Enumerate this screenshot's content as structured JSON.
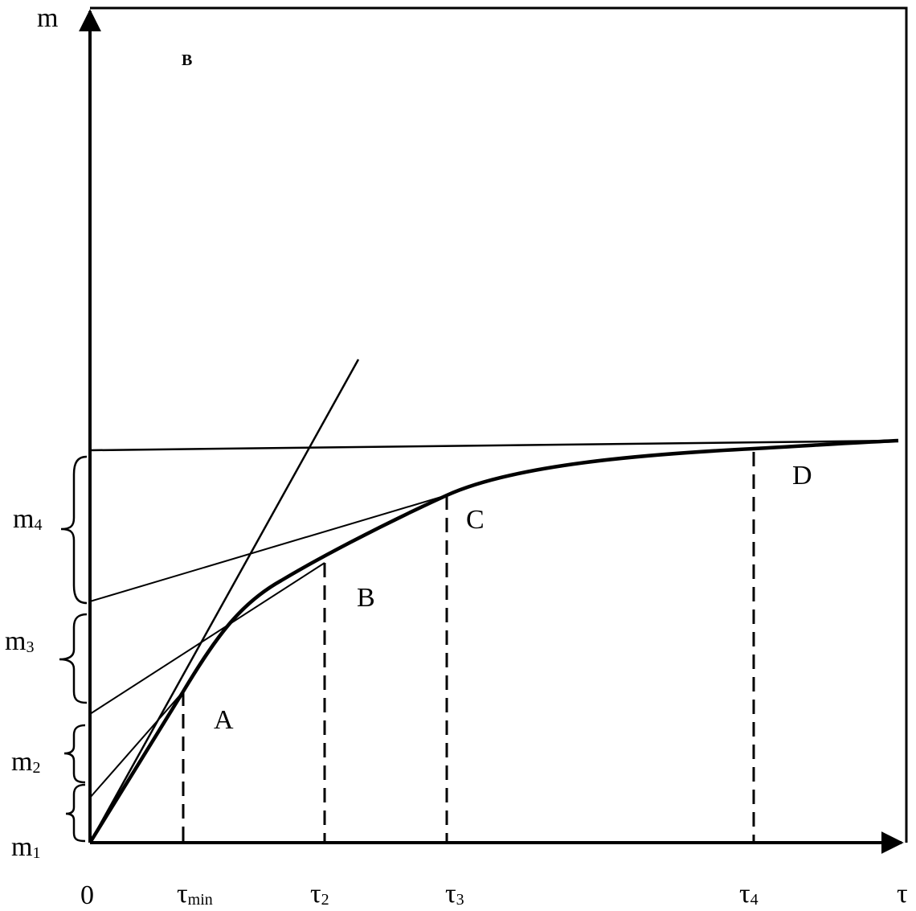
{
  "axes": {
    "y_label": "m",
    "x_label": "τ",
    "origin_label": "0"
  },
  "corner_mark": "B",
  "x_ticks": [
    {
      "base": "τ",
      "sub": "min"
    },
    {
      "base": "τ",
      "sub": "2"
    },
    {
      "base": "τ",
      "sub": "3"
    },
    {
      "base": "τ",
      "sub": "4"
    }
  ],
  "y_brackets": [
    {
      "base": "m",
      "sub": "1"
    },
    {
      "base": "m",
      "sub": "2"
    },
    {
      "base": "m",
      "sub": "3"
    },
    {
      "base": "m",
      "sub": "4"
    }
  ],
  "curve_points": [
    "A",
    "B",
    "C",
    "D"
  ],
  "colors": {
    "ink": "#000000",
    "background": "#ffffff"
  }
}
